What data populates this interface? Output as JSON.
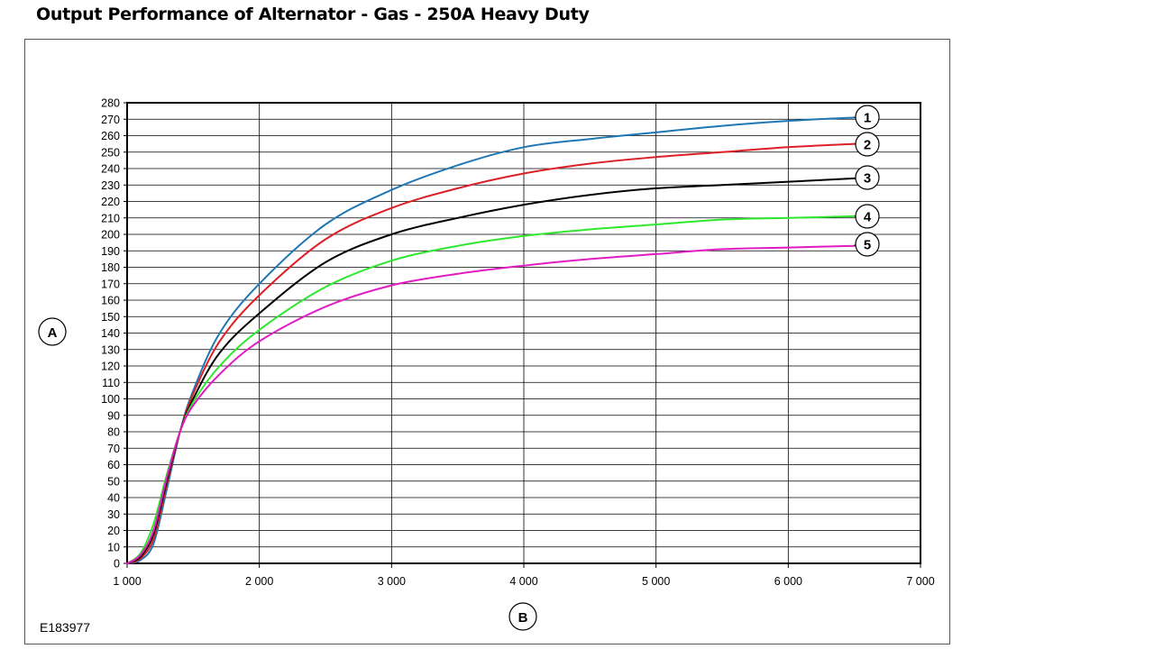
{
  "title": "Output Performance of Alternator - Gas - 250A Heavy Duty",
  "figure_id": "E183977",
  "colors": {
    "series": [
      "#1f77b4",
      "#dd1f26",
      "#000000",
      "#2ee82e",
      "#e21cc3"
    ],
    "grid": "#000000",
    "background": "#ffffff"
  },
  "chart_data": {
    "type": "line",
    "xlabel": "B",
    "ylabel": "A",
    "xlim": [
      1000,
      7000
    ],
    "ylim": [
      0,
      280
    ],
    "x_ticks": [
      1000,
      2000,
      3000,
      4000,
      5000,
      6000,
      7000
    ],
    "x_tick_labels": [
      "1 000",
      "2 000",
      "3 000",
      "4 000",
      "5 000",
      "6 000",
      "7 000"
    ],
    "y_ticks": [
      0,
      10,
      20,
      30,
      40,
      50,
      60,
      70,
      80,
      90,
      100,
      110,
      120,
      130,
      140,
      150,
      160,
      170,
      180,
      190,
      200,
      210,
      220,
      230,
      240,
      250,
      260,
      270,
      280
    ],
    "grid": true,
    "legend": "callout numbers at right end of each curve",
    "series": [
      {
        "label": "1",
        "x": [
          1000,
          1100,
          1200,
          1300,
          1400,
          1500,
          1700,
          2000,
          2500,
          3000,
          3500,
          4000,
          4500,
          5000,
          5500,
          6000,
          6500
        ],
        "values": [
          0,
          2,
          12,
          45,
          80,
          105,
          140,
          170,
          206,
          227,
          242,
          253,
          258,
          262,
          266,
          269,
          271
        ]
      },
      {
        "label": "2",
        "x": [
          1000,
          1100,
          1200,
          1300,
          1400,
          1500,
          1700,
          2000,
          2500,
          3000,
          3500,
          4000,
          4500,
          5000,
          5500,
          6000,
          6500
        ],
        "values": [
          0,
          3,
          15,
          48,
          80,
          103,
          135,
          163,
          197,
          216,
          228,
          237,
          243,
          247,
          250,
          253,
          255
        ]
      },
      {
        "label": "3",
        "x": [
          1000,
          1100,
          1200,
          1300,
          1400,
          1500,
          1700,
          2000,
          2500,
          3000,
          3500,
          4000,
          4500,
          5000,
          5500,
          6000,
          6500
        ],
        "values": [
          0,
          4,
          18,
          50,
          80,
          100,
          128,
          152,
          183,
          200,
          210,
          218,
          224,
          228,
          230,
          232,
          234
        ]
      },
      {
        "label": "4",
        "x": [
          1000,
          1100,
          1200,
          1300,
          1400,
          1500,
          1700,
          2000,
          2500,
          3000,
          3500,
          4000,
          4500,
          5000,
          5500,
          6000,
          6500
        ],
        "values": [
          0,
          6,
          24,
          54,
          80,
          98,
          120,
          142,
          168,
          184,
          193,
          199,
          203,
          206,
          209,
          210,
          211
        ]
      },
      {
        "label": "5",
        "x": [
          1000,
          1100,
          1200,
          1300,
          1400,
          1500,
          1700,
          2000,
          2500,
          3000,
          3500,
          4000,
          4500,
          5000,
          5500,
          6000,
          6500
        ],
        "values": [
          0,
          5,
          20,
          52,
          80,
          96,
          115,
          135,
          156,
          169,
          176,
          181,
          185,
          188,
          191,
          192,
          193
        ]
      }
    ]
  }
}
